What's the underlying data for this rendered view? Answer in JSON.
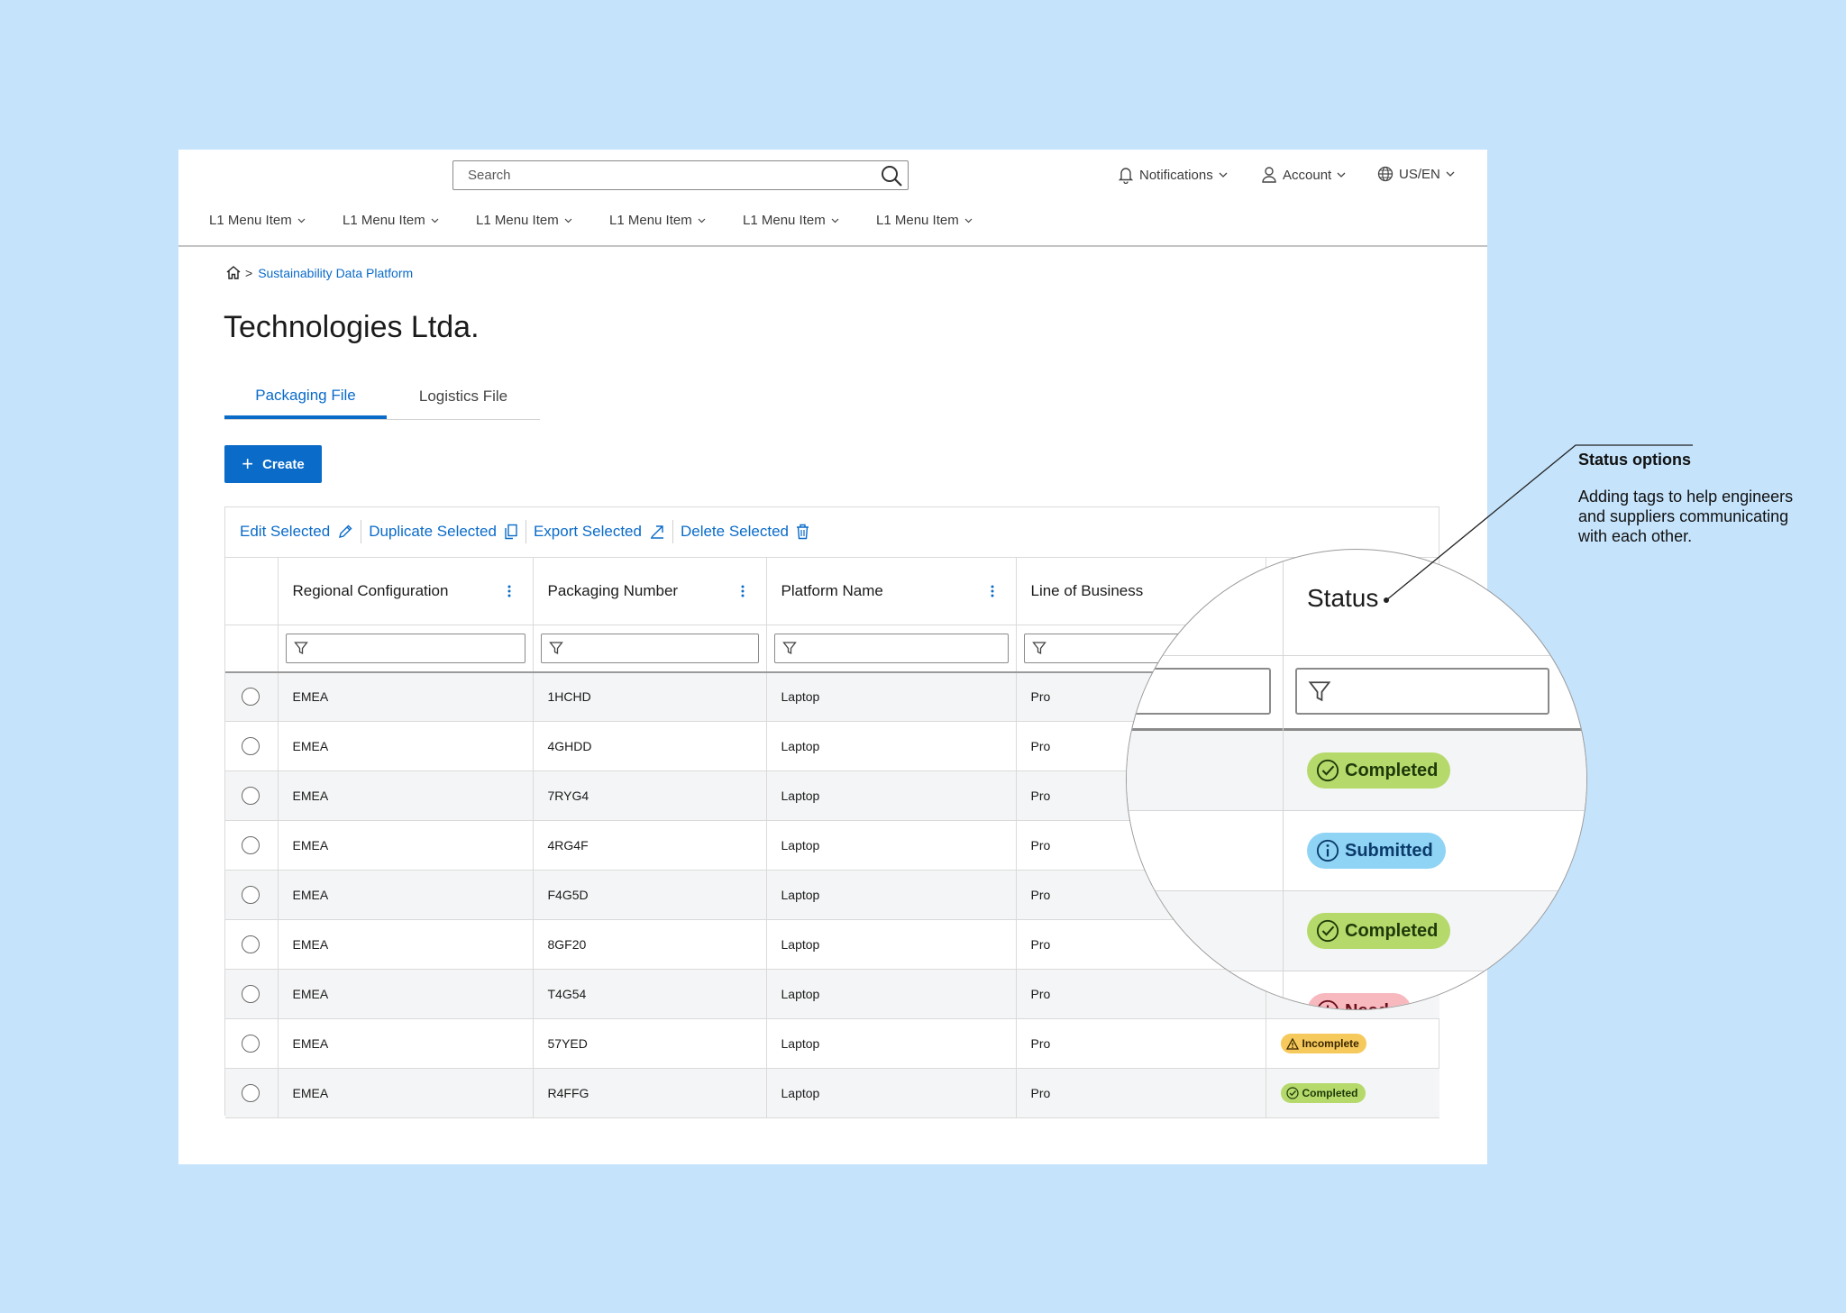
{
  "header": {
    "search_placeholder": "Search",
    "notifications_label": "Notifications",
    "account_label": "Account",
    "locale_label": "US/EN",
    "menu_items": [
      "L1 Menu Item",
      "L1 Menu Item",
      "L1 Menu Item",
      "L1 Menu Item",
      "L1 Menu Item",
      "L1 Menu Item"
    ]
  },
  "breadcrumb": {
    "separator": ">",
    "link": "Sustainability Data Platform"
  },
  "page_title": "Technologies Ltda.",
  "tabs": [
    {
      "label": "Packaging File",
      "active": true
    },
    {
      "label": "Logistics File",
      "active": false
    }
  ],
  "create_button": {
    "label": "Create"
  },
  "bulk_actions": {
    "edit": "Edit Selected",
    "duplicate": "Duplicate Selected",
    "export": "Export Selected",
    "delete": "Delete Selected"
  },
  "table": {
    "columns": [
      "Regional Configuration",
      "Packaging Number",
      "Platform Name",
      "Line of Business",
      "Status"
    ],
    "rows": [
      {
        "region": "EMEA",
        "packaging": "1HCHD",
        "platform": "Laptop",
        "business": "Pro",
        "status": ""
      },
      {
        "region": "EMEA",
        "packaging": "4GHDD",
        "platform": "Laptop",
        "business": "Pro",
        "status": ""
      },
      {
        "region": "EMEA",
        "packaging": "7RYG4",
        "platform": "Laptop",
        "business": "Pro",
        "status": ""
      },
      {
        "region": "EMEA",
        "packaging": "4RG4F",
        "platform": "Laptop",
        "business": "Pro",
        "status": ""
      },
      {
        "region": "EMEA",
        "packaging": "F4G5D",
        "platform": "Laptop",
        "business": "Pro",
        "status": ""
      },
      {
        "region": "EMEA",
        "packaging": "8GF20",
        "platform": "Laptop",
        "business": "Pro",
        "status": ""
      },
      {
        "region": "EMEA",
        "packaging": "T4G54",
        "platform": "Laptop",
        "business": "Pro",
        "status": ""
      },
      {
        "region": "EMEA",
        "packaging": "57YED",
        "platform": "Laptop",
        "business": "Pro",
        "status": "Incomplete"
      },
      {
        "region": "EMEA",
        "packaging": "R4FFG",
        "platform": "Laptop",
        "business": "Pro",
        "status": "Completed"
      }
    ]
  },
  "magnifier": {
    "header": "Status",
    "tags": [
      "Completed",
      "Submitted",
      "Completed",
      "Needs"
    ]
  },
  "annotation": {
    "title": "Status options",
    "body": "Adding tags to help engineers and suppliers communicating with each other."
  },
  "colors": {
    "background": "#c5e3fb",
    "primary": "#0a6bc9",
    "completed": "#b5d96b",
    "submitted": "#8fd3f5",
    "incomplete": "#f6c95c",
    "needs": "#f7b8be"
  },
  "icons": [
    "search-icon",
    "bell-icon",
    "user-icon",
    "globe-icon",
    "chevron-down-icon",
    "home-icon",
    "plus-icon",
    "pencil-icon",
    "duplicate-icon",
    "export-icon",
    "trash-icon",
    "kebab-icon",
    "filter-icon",
    "check-circle-icon",
    "info-icon",
    "warning-icon"
  ]
}
